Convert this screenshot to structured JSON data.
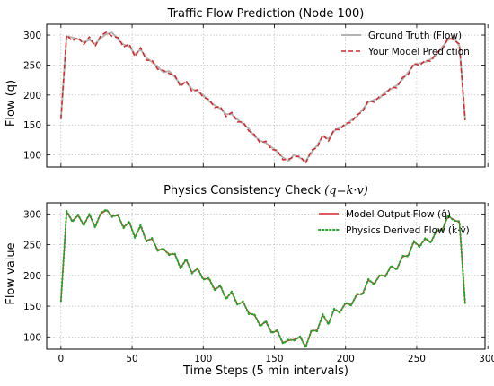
{
  "chart_data": [
    {
      "type": "line",
      "title": "Traffic Flow Prediction (Node 100)",
      "ylabel": "Flow (q)",
      "xlabel": "",
      "xlim": [
        -10,
        298
      ],
      "ylim": [
        80,
        318
      ],
      "x_ticks": [
        0,
        50,
        100,
        150,
        200,
        250,
        300
      ],
      "x_tick_labels": [
        "",
        "",
        "",
        "",
        "",
        "",
        ""
      ],
      "y_ticks": [
        100,
        150,
        200,
        250,
        300
      ],
      "y_tick_labels": [
        "100",
        "150",
        "200",
        "250",
        "300"
      ],
      "grid": true,
      "legend": "top-right",
      "x_step": 4,
      "series": [
        {
          "name": "Ground Truth (Flow)",
          "color": "#b3b3b3",
          "style": "solid",
          "values": [
            160,
            298,
            296,
            293,
            288,
            292,
            285,
            295,
            302,
            304,
            293,
            284,
            281,
            268,
            276,
            262,
            255,
            247,
            238,
            240,
            230,
            218,
            221,
            210,
            206,
            200,
            190,
            183,
            177,
            168,
            168,
            159,
            152,
            144,
            131,
            124,
            120,
            113,
            105,
            96,
            90,
            101,
            95,
            90,
            104,
            116,
            131,
            127,
            140,
            146,
            150,
            158,
            164,
            176,
            188,
            192,
            195,
            205,
            210,
            216,
            226,
            238,
            250,
            253,
            255,
            260,
            268,
            280,
            292,
            296,
            282,
            160
          ]
        },
        {
          "name": "Your Model Prediction",
          "color": "#d62728",
          "style": "dashed",
          "values": [
            160,
            300,
            290,
            296,
            284,
            297,
            281,
            299,
            305,
            298,
            296,
            280,
            285,
            264,
            279,
            258,
            258,
            243,
            241,
            236,
            233,
            214,
            224,
            206,
            209,
            196,
            193,
            179,
            181,
            164,
            171,
            155,
            155,
            140,
            134,
            120,
            123,
            109,
            108,
            92,
            93,
            97,
            98,
            86,
            108,
            112,
            134,
            123,
            143,
            142,
            153,
            154,
            167,
            172,
            191,
            188,
            198,
            201,
            213,
            212,
            229,
            234,
            253,
            249,
            258,
            256,
            271,
            276,
            295,
            292,
            285,
            158
          ]
        }
      ]
    },
    {
      "type": "line",
      "title": "Physics Consistency Check (q=k·v)",
      "ylabel": "Flow value",
      "xlabel": "Time Steps (5 min intervals)",
      "xlim": [
        -10,
        298
      ],
      "ylim": [
        80,
        318
      ],
      "x_ticks": [
        0,
        50,
        100,
        150,
        200,
        250,
        300
      ],
      "x_tick_labels": [
        "0",
        "50",
        "100",
        "150",
        "200",
        "250",
        "300"
      ],
      "y_ticks": [
        100,
        150,
        200,
        250,
        300
      ],
      "y_tick_labels": [
        "100",
        "150",
        "200",
        "250",
        "300"
      ],
      "grid": true,
      "legend": "top-right",
      "x_step": 4,
      "series": [
        {
          "name": "Model Output Flow (q̂)",
          "color": "#d62728",
          "style": "solid",
          "values": [
            158,
            303,
            289,
            297,
            283,
            298,
            280,
            300,
            306,
            297,
            297,
            279,
            286,
            263,
            280,
            257,
            259,
            242,
            242,
            235,
            234,
            213,
            225,
            205,
            210,
            195,
            194,
            178,
            182,
            163,
            172,
            154,
            156,
            139,
            135,
            119,
            124,
            108,
            109,
            91,
            94,
            96,
            99,
            85,
            109,
            111,
            135,
            122,
            144,
            141,
            154,
            153,
            168,
            171,
            192,
            187,
            199,
            200,
            214,
            211,
            230,
            233,
            254,
            248,
            259,
            255,
            272,
            275,
            296,
            291,
            286,
            156
          ]
        },
        {
          "name": "Physics Derived Flow (k̂·v̂)",
          "color": "#2ca02c",
          "style": "dotted",
          "values": [
            158,
            305,
            287,
            299,
            281,
            300,
            278,
            302,
            307,
            295,
            299,
            277,
            288,
            261,
            282,
            255,
            261,
            240,
            244,
            233,
            236,
            211,
            227,
            203,
            212,
            193,
            196,
            176,
            184,
            161,
            174,
            152,
            158,
            137,
            137,
            117,
            126,
            106,
            111,
            89,
            96,
            94,
            101,
            83,
            111,
            109,
            137,
            120,
            146,
            139,
            156,
            151,
            170,
            169,
            194,
            185,
            201,
            198,
            216,
            209,
            232,
            231,
            256,
            246,
            261,
            253,
            274,
            273,
            298,
            289,
            288,
            155
          ]
        }
      ]
    }
  ]
}
